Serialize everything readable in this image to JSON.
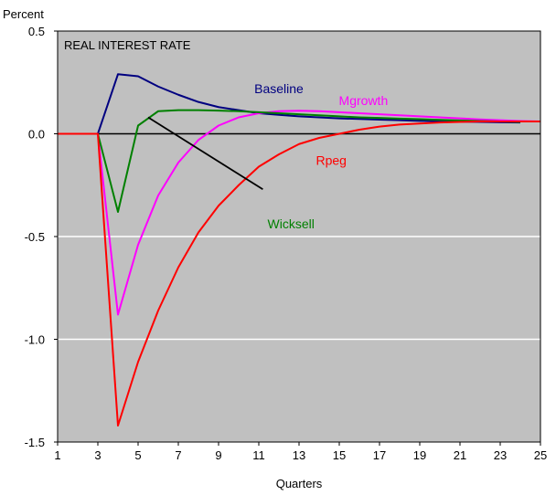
{
  "chart_data": {
    "type": "line",
    "title": "REAL INTEREST RATE",
    "ylabel": "Percent",
    "xlabel": "Quarters",
    "xlim": [
      1,
      25
    ],
    "ylim": [
      -1.5,
      0.5
    ],
    "xticks": [
      1,
      3,
      5,
      7,
      9,
      11,
      13,
      15,
      17,
      19,
      21,
      23,
      25
    ],
    "yticks": [
      -1.5,
      -1.0,
      -0.5,
      0.0,
      0.5
    ],
    "ytick_labels": [
      "-1.5",
      "-1.0",
      "-0.5",
      "0.0",
      "0.5"
    ],
    "plot_background": "#c0c0c0",
    "grid": "horizontal",
    "series": [
      {
        "name": "Baseline",
        "color": "#000080",
        "x": [
          1,
          2,
          3,
          4,
          5,
          6,
          7,
          8,
          9,
          10,
          11,
          12,
          13,
          14,
          15,
          16,
          17,
          18,
          19,
          20,
          21,
          22,
          23,
          24
        ],
        "values": [
          0,
          0,
          0,
          0.29,
          0.28,
          0.23,
          0.19,
          0.155,
          0.13,
          0.115,
          0.1,
          0.092,
          0.085,
          0.08,
          0.075,
          0.072,
          0.069,
          0.066,
          0.063,
          0.061,
          0.059,
          0.058,
          0.056,
          0.055
        ]
      },
      {
        "name": "Mgrowth",
        "color": "#ff00ff",
        "x": [
          1,
          2,
          3,
          4,
          5,
          6,
          7,
          8,
          9,
          10,
          11,
          12,
          13,
          14,
          15,
          16,
          17,
          18,
          19,
          20,
          21,
          22,
          23,
          24,
          25
        ],
        "values": [
          0,
          0,
          0,
          -0.88,
          -0.54,
          -0.3,
          -0.14,
          -0.03,
          0.04,
          0.08,
          0.1,
          0.11,
          0.112,
          0.11,
          0.105,
          0.1,
          0.095,
          0.09,
          0.085,
          0.08,
          0.075,
          0.07,
          0.066,
          0.062,
          0.06
        ]
      },
      {
        "name": "Wicksell",
        "color": "#008000",
        "x": [
          1,
          2,
          3,
          4,
          5,
          6,
          7,
          8,
          9,
          10,
          11,
          12,
          13,
          14,
          15,
          16,
          17,
          18,
          19,
          20,
          21,
          22,
          23,
          24
        ],
        "values": [
          0,
          0,
          0,
          -0.38,
          0.04,
          0.11,
          0.115,
          0.115,
          0.113,
          0.11,
          0.105,
          0.1,
          0.095,
          0.09,
          0.085,
          0.08,
          0.077,
          0.074,
          0.071,
          0.068,
          0.065,
          0.062,
          0.06,
          0.058
        ]
      },
      {
        "name": "Rpeg",
        "color": "#ff0000",
        "x": [
          1,
          2,
          3,
          4,
          5,
          6,
          7,
          8,
          9,
          10,
          11,
          12,
          13,
          14,
          15,
          16,
          17,
          18,
          19,
          20,
          21,
          22,
          23,
          24,
          25
        ],
        "values": [
          0,
          0,
          0,
          -1.42,
          -1.11,
          -0.86,
          -0.65,
          -0.48,
          -0.35,
          -0.25,
          -0.16,
          -0.1,
          -0.05,
          -0.02,
          0.0,
          0.02,
          0.035,
          0.045,
          0.05,
          0.055,
          0.058,
          0.06,
          0.06,
          0.06,
          0.06
        ]
      }
    ],
    "annotations": [
      {
        "text": "Baseline",
        "x": 12,
        "y": 0.198,
        "color": "#000080"
      },
      {
        "text": "Mgrowth",
        "x": 16.2,
        "y": 0.14,
        "color": "#ff00ff"
      },
      {
        "text": "Rpeg",
        "x": 14.6,
        "y": -0.15,
        "color": "#ff0000"
      },
      {
        "text": "Wicksell",
        "x": 12.6,
        "y": -0.46,
        "color": "#008000"
      }
    ],
    "pointer_line": {
      "from": [
        5.5,
        0.08
      ],
      "to": [
        11.2,
        -0.27
      ],
      "color": "#000000"
    }
  }
}
